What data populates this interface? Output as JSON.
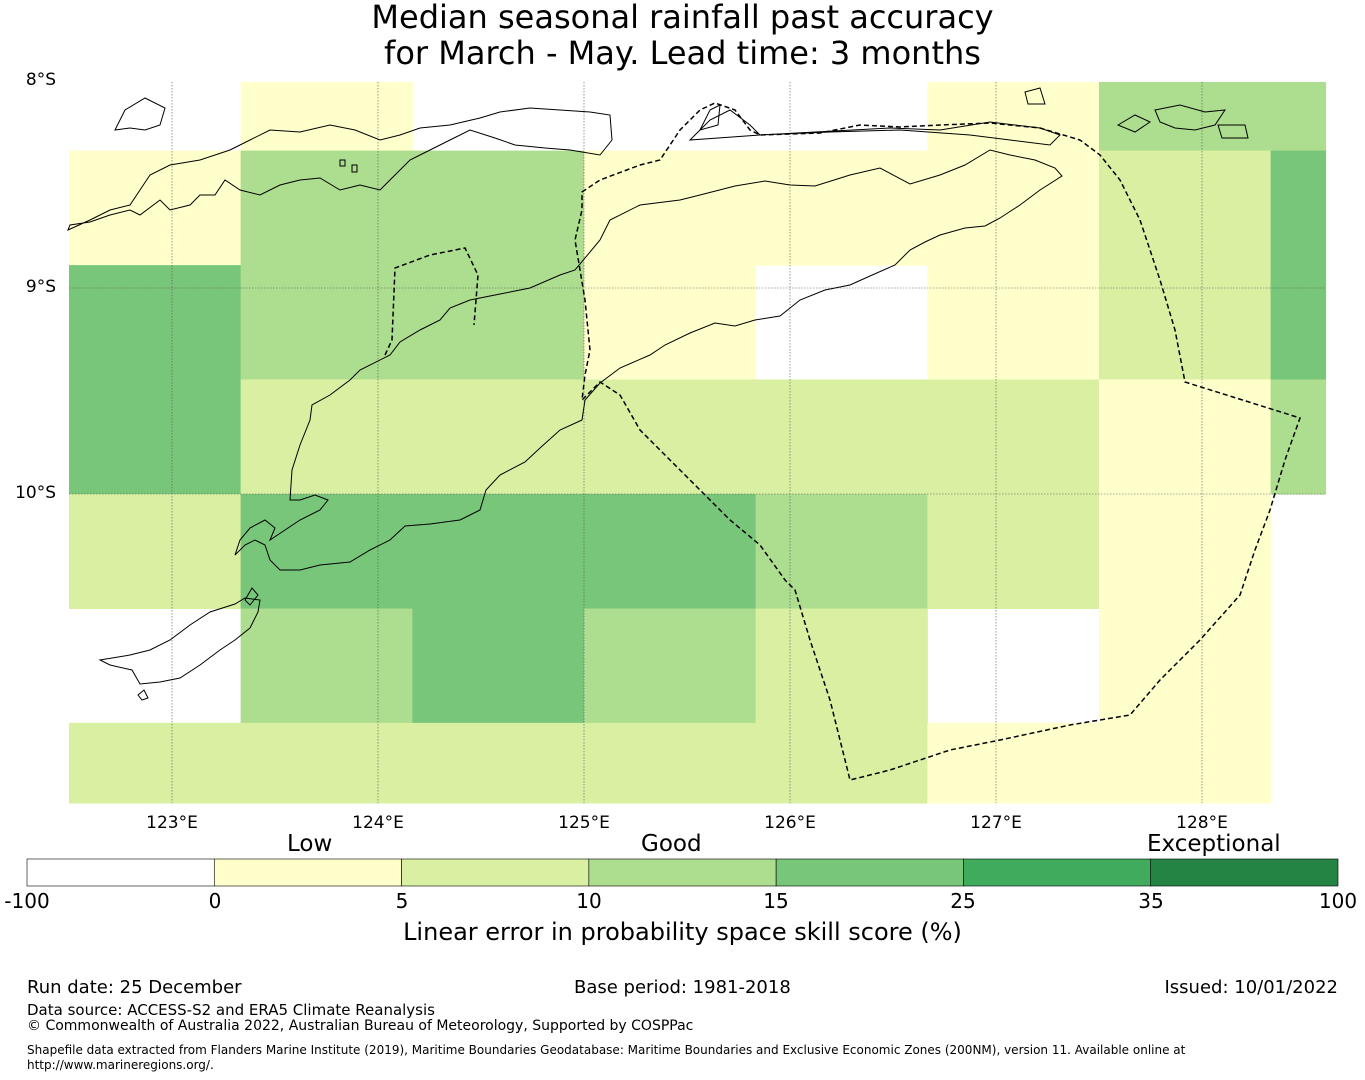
{
  "title": {
    "line1": "Median seasonal rainfall past accuracy",
    "line2": "for March - May. Lead time: 3 months"
  },
  "latitude_labels": [
    "8°S",
    "9°S",
    "10°S"
  ],
  "longitude_labels": [
    "123°E",
    "124°E",
    "125°E",
    "126°E",
    "127°E",
    "128°E"
  ],
  "colorbar": {
    "categories": [
      "Low",
      "Good",
      "Exceptional"
    ],
    "ticks": [
      "-100",
      "0",
      "5",
      "10",
      "15",
      "25",
      "35",
      "100"
    ],
    "colors": [
      "#ffffff",
      "#ffffcc",
      "#d9f0a3",
      "#addd8e",
      "#78c679",
      "#41ab5d",
      "#238443"
    ],
    "label": "Linear error in probability space skill score (%)"
  },
  "footer": {
    "run_date": "Run date: 25 December",
    "base_period": "Base period: 1981-2018",
    "issued": "Issued: 10/01/2022",
    "data_source": "Data source: ACCESS-S2 and ERA5 Climate Reanalysis",
    "copyright": "© Commonwealth of Australia 2022, Australian Bureau of Meteorology, Supported by COSPPac",
    "shapefile_line1": "Shapefile data extracted from Flanders Marine Institute (2019), Maritime Boundaries Geodatabase: Maritime Boundaries and Exclusive Economic Zones (200NM), version 11. Available online at",
    "shapefile_line2": "http://www.marineregions.org/."
  },
  "map_grid": {
    "lon_edges": [
      122.5,
      123.333,
      124.167,
      125.0,
      125.833,
      126.667,
      127.5,
      128.333,
      128.6
    ],
    "lat_edges": [
      -8.0,
      -8.333,
      -8.889,
      -9.444,
      -10.0,
      -10.556,
      -11.111,
      -11.5
    ],
    "cells": [
      [
        "none",
        "0-5",
        "none",
        "none",
        "none",
        "0-5",
        "10-15",
        "10-15"
      ],
      [
        "0-5",
        "10-15",
        "10-15",
        "0-5",
        "0-5",
        "0-5",
        "5-10",
        "15-25"
      ],
      [
        "15-25",
        "10-15",
        "10-15",
        "0-5",
        "none",
        "0-5",
        "5-10",
        "15-25"
      ],
      [
        "15-25",
        "5-10",
        "5-10",
        "5-10",
        "5-10",
        "5-10",
        "0-5",
        "10-15"
      ],
      [
        "5-10",
        "15-25",
        "15-25",
        "15-25",
        "10-15",
        "5-10",
        "0-5",
        "none"
      ],
      [
        "none",
        "10-15",
        "15-25",
        "10-15",
        "5-10",
        "none",
        "0-5",
        "none"
      ],
      [
        "5-10",
        "5-10",
        "5-10",
        "5-10",
        "5-10",
        "0-5",
        "0-5",
        "none"
      ]
    ]
  }
}
